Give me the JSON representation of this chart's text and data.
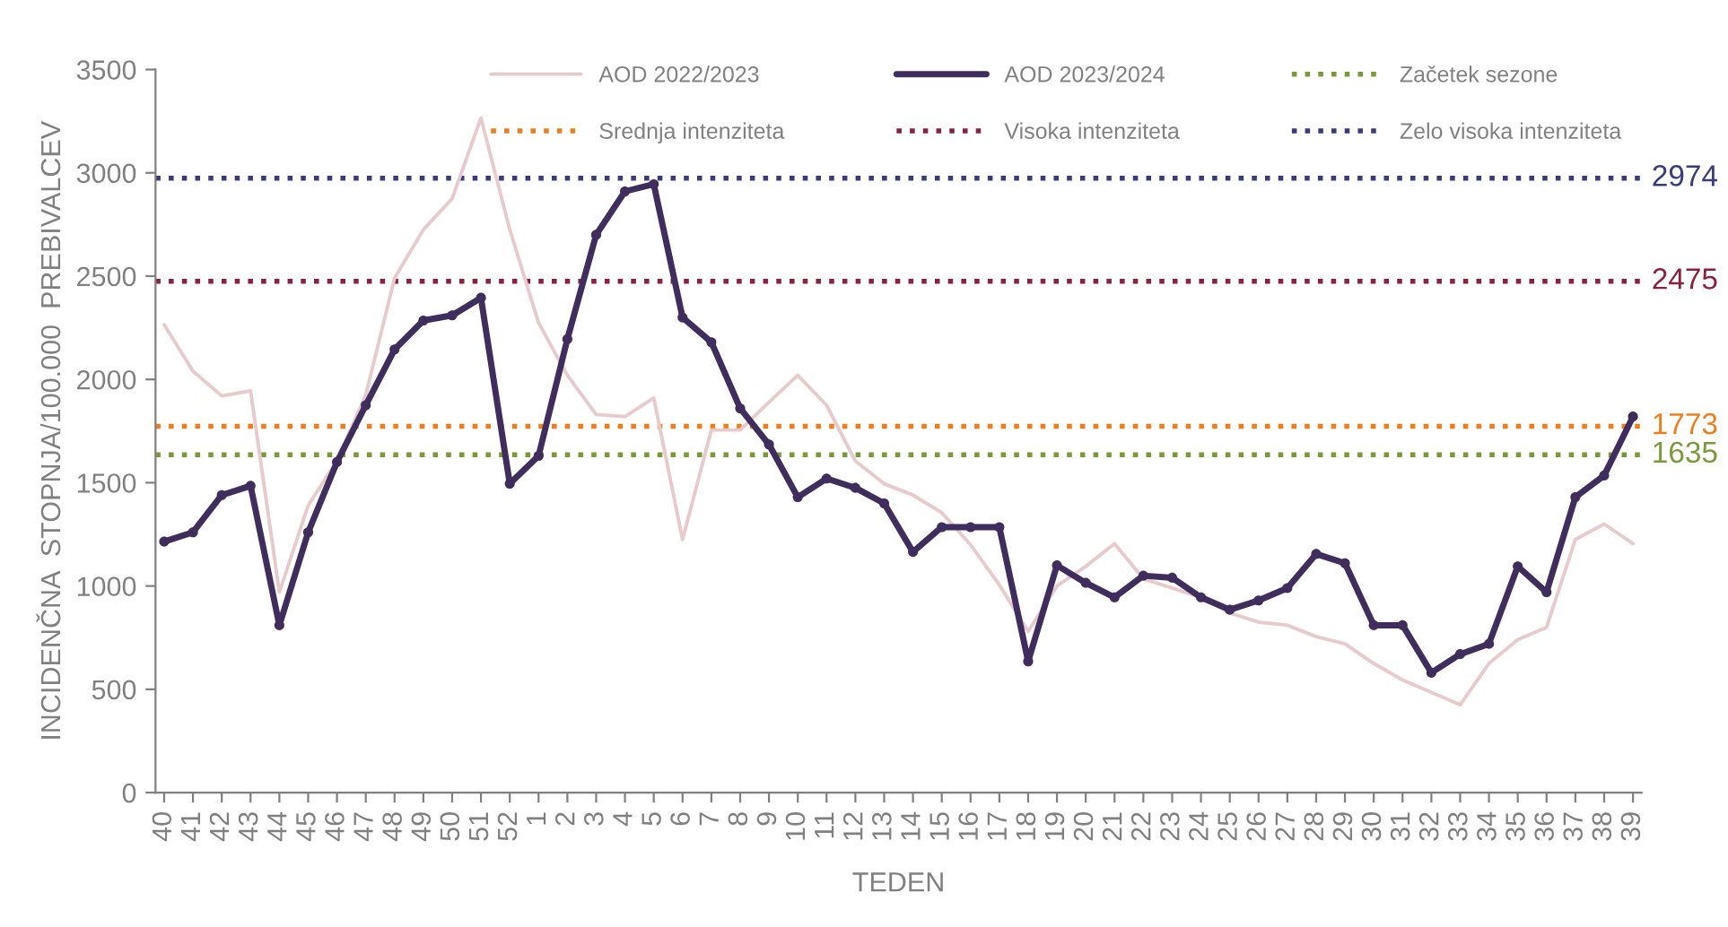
{
  "chart_data": {
    "type": "line",
    "xlabel": "TEDEN",
    "ylabel": "INCIDENČNA  STOPNJA/100.000  PREBIVALCEV",
    "categories": [
      "40",
      "41",
      "42",
      "43",
      "44",
      "45",
      "46",
      "47",
      "48",
      "49",
      "50",
      "51",
      "52",
      "1",
      "2",
      "3",
      "4",
      "5",
      "6",
      "7",
      "8",
      "9",
      "10",
      "11",
      "12",
      "13",
      "14",
      "15",
      "16",
      "17",
      "18",
      "19",
      "20",
      "21",
      "22",
      "23",
      "24",
      "25",
      "26",
      "27",
      "28",
      "29",
      "30",
      "31",
      "32",
      "33",
      "34",
      "35",
      "36",
      "37",
      "38",
      "39"
    ],
    "series": [
      {
        "name": "AOD 2022/2023",
        "color": "#e8c9cc",
        "marker": "none",
        "values": [
          2265,
          2040,
          1920,
          1945,
          970,
          1390,
          1605,
          1925,
          2490,
          2725,
          2875,
          3265,
          2725,
          2275,
          2020,
          1830,
          1820,
          1910,
          1225,
          1755,
          1755,
          1890,
          2020,
          1875,
          1605,
          1495,
          1440,
          1355,
          1200,
          1005,
          780,
          1000,
          1095,
          1205,
          1035,
          990,
          945,
          870,
          825,
          810,
          755,
          720,
          625,
          545,
          485,
          425,
          625,
          740,
          800,
          1225,
          1300,
          1205
        ]
      },
      {
        "name": "AOD 2023/2024",
        "color": "#3f2d5e",
        "marker": "circle",
        "values": [
          1215,
          1260,
          1440,
          1485,
          810,
          1260,
          1600,
          1875,
          2145,
          2285,
          2310,
          2395,
          1495,
          1630,
          2195,
          2700,
          2910,
          2945,
          2300,
          2180,
          1860,
          1685,
          1430,
          1520,
          1475,
          1400,
          1165,
          1285,
          1285,
          1285,
          635,
          1100,
          1015,
          945,
          1050,
          1040,
          945,
          885,
          930,
          990,
          1155,
          1110,
          810,
          810,
          580,
          670,
          720,
          1095,
          970,
          1430,
          1535,
          1820
        ]
      }
    ],
    "ref_lines": [
      {
        "axis": "y",
        "value": 1635,
        "label": "Začetek sezone",
        "color": "#7a9a3a",
        "line_style": "dotted"
      },
      {
        "axis": "y",
        "value": 1773,
        "label": "Srednja intenziteta",
        "color": "#f07d1a",
        "line_style": "dotted"
      },
      {
        "axis": "y",
        "value": 2475,
        "label": "Visoka intenziteta",
        "color": "#8b2040",
        "line_style": "dotted"
      },
      {
        "axis": "y",
        "value": 2974,
        "label": "Zelo visoka intenziteta",
        "color": "#3a3a80",
        "line_style": "dotted"
      }
    ],
    "annotations": [
      "1635",
      "1773",
      "2475",
      "2974"
    ],
    "ylim": [
      0,
      3500
    ],
    "yticks": [
      0,
      500,
      1000,
      1500,
      2000,
      2500,
      3000,
      3500
    ],
    "grid": false,
    "legend": "top"
  }
}
